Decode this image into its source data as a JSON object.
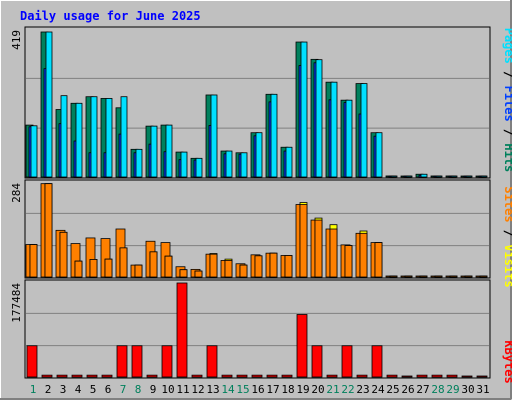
{
  "chart_data": [
    {
      "type": "bar",
      "title": "Daily usage for June 2025",
      "panel": "hits-files-pages",
      "ymax_label": "419",
      "ylim": [
        0,
        419
      ],
      "grid": true,
      "legend": [
        "Hits",
        "Files",
        "Pages"
      ],
      "legend_separator": " / ",
      "categories": [
        "1",
        "2",
        "3",
        "4",
        "5",
        "6",
        "7",
        "8",
        "9",
        "10",
        "11",
        "12",
        "13",
        "14",
        "15",
        "16",
        "17",
        "18",
        "19",
        "20",
        "21",
        "22",
        "23",
        "24",
        "25",
        "26",
        "27",
        "28",
        "29",
        "30",
        "31"
      ],
      "series": [
        {
          "name": "Pages",
          "values": [
            148,
            419,
            235,
            213,
            232,
            227,
            232,
            80,
            147,
            150,
            72,
            54,
            237,
            75,
            70,
            128,
            239,
            86,
            390,
            339,
            274,
            222,
            270,
            128,
            0,
            0,
            8,
            0,
            0,
            0,
            0
          ]
        },
        {
          "name": "Files",
          "values": [
            145,
            313,
            154,
            104,
            70,
            70,
            124,
            70,
            95,
            73,
            50,
            49,
            149,
            67,
            66,
            119,
            217,
            75,
            322,
            330,
            223,
            215,
            182,
            118,
            0,
            0,
            5,
            0,
            0,
            0,
            0
          ]
        },
        {
          "name": "Hits",
          "values": [
            150,
            419,
            195,
            213,
            232,
            227,
            200,
            80,
            147,
            150,
            72,
            54,
            237,
            75,
            70,
            128,
            239,
            86,
            390,
            340,
            274,
            222,
            270,
            128,
            3,
            0,
            8,
            3,
            3,
            0,
            0
          ]
        }
      ]
    },
    {
      "type": "bar",
      "panel": "visits-sites",
      "ymax_label": "284",
      "ylim": [
        0,
        284
      ],
      "grid": true,
      "legend": [
        "Visits",
        "Sites"
      ],
      "legend_separator": " / ",
      "categories": [
        "1",
        "2",
        "3",
        "4",
        "5",
        "6",
        "7",
        "8",
        "9",
        "10",
        "11",
        "12",
        "13",
        "14",
        "15",
        "16",
        "17",
        "18",
        "19",
        "20",
        "21",
        "22",
        "23",
        "24",
        "25",
        "26",
        "27",
        "28",
        "29",
        "30",
        "31"
      ],
      "series": [
        {
          "name": "Sites",
          "values": [
            98,
            282,
            141,
            101,
            118,
            116,
            145,
            36,
            108,
            104,
            31,
            23,
            69,
            50,
            40,
            67,
            72,
            65,
            219,
            172,
            145,
            97,
            132,
            104,
            2,
            0,
            2,
            2,
            2,
            0,
            0
          ]
        },
        {
          "name": "Visits",
          "values": [
            98,
            282,
            135,
            48,
            53,
            54,
            88,
            36,
            76,
            63,
            22,
            18,
            71,
            54,
            36,
            64,
            72,
            65,
            225,
            178,
            158,
            95,
            139,
            104,
            2,
            0,
            2,
            2,
            2,
            0,
            0
          ]
        }
      ]
    },
    {
      "type": "bar",
      "panel": "kbytes",
      "ymax_label": "177484",
      "ylim": [
        0,
        177484
      ],
      "grid": true,
      "legend": [
        "KBytes"
      ],
      "categories": [
        "1",
        "2",
        "3",
        "4",
        "5",
        "6",
        "7",
        "8",
        "9",
        "10",
        "11",
        "12",
        "13",
        "14",
        "15",
        "16",
        "17",
        "18",
        "19",
        "20",
        "21",
        "22",
        "23",
        "24",
        "25",
        "26",
        "27",
        "28",
        "29",
        "30",
        "31"
      ],
      "series": [
        {
          "name": "KBytes",
          "values": [
            59000,
            3500,
            3500,
            3500,
            3500,
            3500,
            59000,
            59000,
            3500,
            59000,
            177484,
            3500,
            59000,
            3500,
            3500,
            3500,
            3500,
            3500,
            118000,
            59000,
            3500,
            59000,
            3500,
            59000,
            3500,
            0,
            3500,
            3500,
            3500,
            0,
            0
          ]
        }
      ]
    }
  ],
  "title": "Daily usage for June 2025",
  "day_labels": [
    "1",
    "2",
    "3",
    "4",
    "5",
    "6",
    "7",
    "8",
    "9",
    "10",
    "11",
    "12",
    "13",
    "14",
    "15",
    "16",
    "17",
    "18",
    "19",
    "20",
    "21",
    "22",
    "23",
    "24",
    "25",
    "26",
    "27",
    "28",
    "29",
    "30",
    "31"
  ],
  "weekend_days": [
    1,
    7,
    8,
    14,
    15,
    21,
    22,
    28,
    29
  ],
  "colors": {
    "background": "#c0c0c0",
    "plot_bg": "#c0c0c0",
    "grid": "#808080",
    "title": "#0000ff",
    "axis_text": "#000000",
    "weekday_label": "#000000",
    "weekend_label": "#00805c",
    "hits": "#00805c",
    "files": "#0040ff",
    "pages": "#00e0ff",
    "visits": "#ffff00",
    "sites": "#ff8000",
    "kbytes": "#ff0000"
  }
}
